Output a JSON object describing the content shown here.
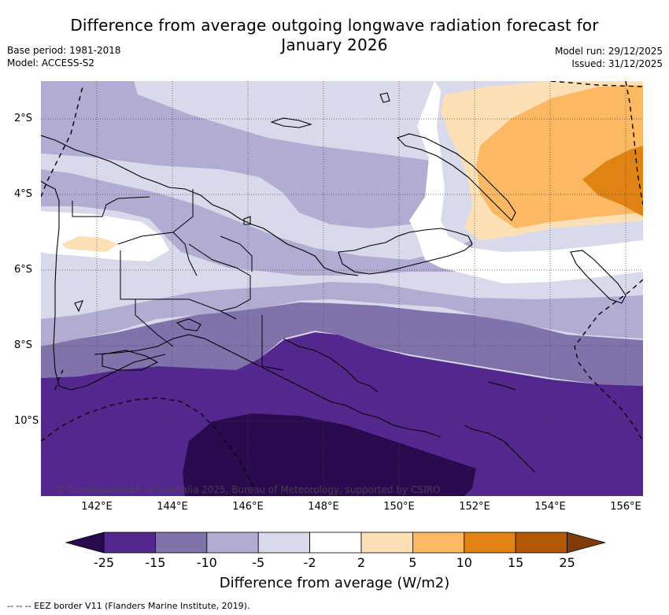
{
  "title": {
    "line1": "Difference from average outgoing longwave radiation forecast for",
    "line2": "January 2026"
  },
  "meta": {
    "base_period": "Base period: 1981-2018",
    "model": "Model: ACCESS-S2",
    "model_run": "Model run: 29/12/2025",
    "issued": "Issued: 31/12/2025"
  },
  "map": {
    "longitude_ticks": [
      "142°E",
      "144°E",
      "146°E",
      "148°E",
      "150°E",
      "152°E",
      "154°E",
      "156°E"
    ],
    "latitude_ticks": [
      "2°S",
      "4°S",
      "6°S",
      "8°S",
      "10°S"
    ],
    "copyright": "© Commonwealth of Australia 2025, Bureau of Meteorology, supported by CSIRO"
  },
  "colorbar": {
    "title": "Difference from average (W/m2)",
    "tick_labels": [
      "-25",
      "-15",
      "-10",
      "-5",
      "-2",
      "2",
      "5",
      "10",
      "15",
      "25"
    ],
    "colors": [
      "#2a0a4e",
      "#54278f",
      "#8073ac",
      "#b2abd2",
      "#d8daeb",
      "#ffffff",
      "#fee0b6",
      "#fdb863",
      "#e08214",
      "#b35806",
      "#7f3b08"
    ]
  },
  "footer": {
    "legend": "--  --  -- EEZ border V11 (Flanders Marine Institute, 2019)."
  }
}
